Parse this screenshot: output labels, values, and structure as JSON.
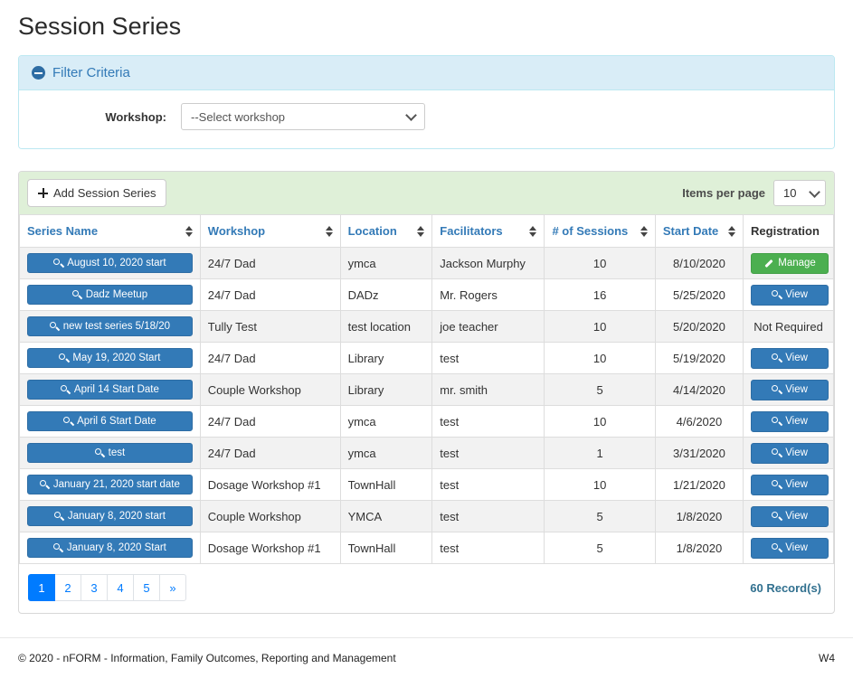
{
  "page": {
    "title": "Session Series"
  },
  "filter": {
    "header_label": "Filter Criteria",
    "workshop_label": "Workshop:",
    "workshop_selected": "--Select workshop"
  },
  "toolbar": {
    "add_button_label": "Add Session Series",
    "items_per_page_label": "Items per page",
    "items_per_page_value": "10"
  },
  "table": {
    "columns": [
      {
        "label": "Series Name",
        "sortable": true
      },
      {
        "label": "Workshop",
        "sortable": true
      },
      {
        "label": "Location",
        "sortable": true
      },
      {
        "label": "Facilitators",
        "sortable": true
      },
      {
        "label": "# of Sessions",
        "sortable": true
      },
      {
        "label": "Start Date",
        "sortable": true
      },
      {
        "label": "Registration",
        "sortable": false
      }
    ],
    "rows": [
      {
        "series_name": "August 10, 2020 start",
        "workshop": "24/7 Dad",
        "location": "ymca",
        "facilitators": "Jackson Murphy",
        "sessions": "10",
        "start_date": "8/10/2020",
        "registration": {
          "type": "manage",
          "label": "Manage"
        }
      },
      {
        "series_name": "Dadz Meetup",
        "workshop": "24/7 Dad",
        "location": "DADz",
        "facilitators": "Mr. Rogers",
        "sessions": "16",
        "start_date": "5/25/2020",
        "registration": {
          "type": "view",
          "label": "View"
        }
      },
      {
        "series_name": "new test series 5/18/20",
        "workshop": "Tully Test",
        "location": "test location",
        "facilitators": "joe teacher",
        "sessions": "10",
        "start_date": "5/20/2020",
        "registration": {
          "type": "text",
          "label": "Not Required"
        }
      },
      {
        "series_name": "May 19, 2020 Start",
        "workshop": "24/7 Dad",
        "location": "Library",
        "facilitators": "test",
        "sessions": "10",
        "start_date": "5/19/2020",
        "registration": {
          "type": "view",
          "label": "View"
        }
      },
      {
        "series_name": "April 14 Start Date",
        "workshop": "Couple Workshop",
        "location": "Library",
        "facilitators": "mr. smith",
        "sessions": "5",
        "start_date": "4/14/2020",
        "registration": {
          "type": "view",
          "label": "View"
        }
      },
      {
        "series_name": "April 6 Start Date",
        "workshop": "24/7 Dad",
        "location": "ymca",
        "facilitators": "test",
        "sessions": "10",
        "start_date": "4/6/2020",
        "registration": {
          "type": "view",
          "label": "View"
        }
      },
      {
        "series_name": "test",
        "workshop": "24/7 Dad",
        "location": "ymca",
        "facilitators": "test",
        "sessions": "1",
        "start_date": "3/31/2020",
        "registration": {
          "type": "view",
          "label": "View"
        }
      },
      {
        "series_name": "January 21, 2020 start date",
        "workshop": "Dosage Workshop #1",
        "location": "TownHall",
        "facilitators": "test",
        "sessions": "10",
        "start_date": "1/21/2020",
        "registration": {
          "type": "view",
          "label": "View"
        }
      },
      {
        "series_name": "January 8, 2020 start",
        "workshop": "Couple Workshop",
        "location": "YMCA",
        "facilitators": "test",
        "sessions": "5",
        "start_date": "1/8/2020",
        "registration": {
          "type": "view",
          "label": "View"
        }
      },
      {
        "series_name": "January 8, 2020 Start",
        "workshop": "Dosage Workshop #1",
        "location": "TownHall",
        "facilitators": "test",
        "sessions": "5",
        "start_date": "1/8/2020",
        "registration": {
          "type": "view",
          "label": "View"
        }
      }
    ],
    "column_widths": [
      "22.2%",
      "17.2%",
      "11.3%",
      "13.8%",
      "13.6%",
      "10.8%",
      "11.1%"
    ]
  },
  "pagination": {
    "pages": [
      "1",
      "2",
      "3",
      "4",
      "5"
    ],
    "active_page": "1",
    "next_label": "»",
    "record_count": "60 Record(s)"
  },
  "footer": {
    "copyright": "© 2020 - nFORM - Information, Family Outcomes, Reporting and Management",
    "version": "W4"
  },
  "icons": {
    "collapse-icon": "minus-circle",
    "plus-icon": "plus",
    "search-icon": "magnifier",
    "pencil-icon": "pencil",
    "sort-icon": "up-down-arrows",
    "chevron-down-icon": "chevron-down"
  },
  "colors": {
    "accent_blue": "#337ab7",
    "success_green": "#4caf50",
    "pagination_blue": "#007bff",
    "filter_header_bg": "#d9edf7",
    "filter_border": "#bce8f1",
    "toolbar_bg": "#dff0d8",
    "stripe_bg": "#f2f2f2",
    "table_border": "#dddddd"
  }
}
